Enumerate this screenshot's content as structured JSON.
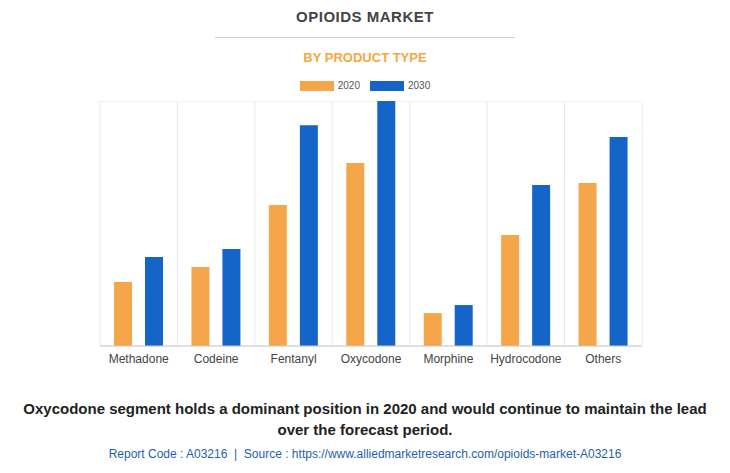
{
  "chart_data": {
    "type": "bar",
    "title": "OPIOIDS MARKET",
    "subtitle": "BY PRODUCT TYPE",
    "categories": [
      "Methadone",
      "Codeine",
      "Fentanyl",
      "Oxycodone",
      "Morphine",
      "Hydrocodone",
      "Others"
    ],
    "series": [
      {
        "name": "2020",
        "color": "#f5a54a",
        "values": [
          1.83,
          2.26,
          4.03,
          5.23,
          0.94,
          3.17,
          4.66
        ]
      },
      {
        "name": "2030",
        "color": "#1565c8",
        "values": [
          2.54,
          2.77,
          6.31,
          7.0,
          1.17,
          4.6,
          5.97
        ]
      }
    ],
    "ylim": [
      0,
      7
    ],
    "yticks": [
      0,
      1,
      2,
      3,
      4,
      5,
      6,
      7
    ],
    "grid": true,
    "legend": "top",
    "tick_labels": false,
    "annotations": [
      "Oxycodone segment holds a dominant position in 2020 and would continue to maintain the lead over the forecast period.",
      "Report Code : A03216  |  Source : https://www.alliedmarketresearch.com/opioids-market-A03216"
    ]
  }
}
